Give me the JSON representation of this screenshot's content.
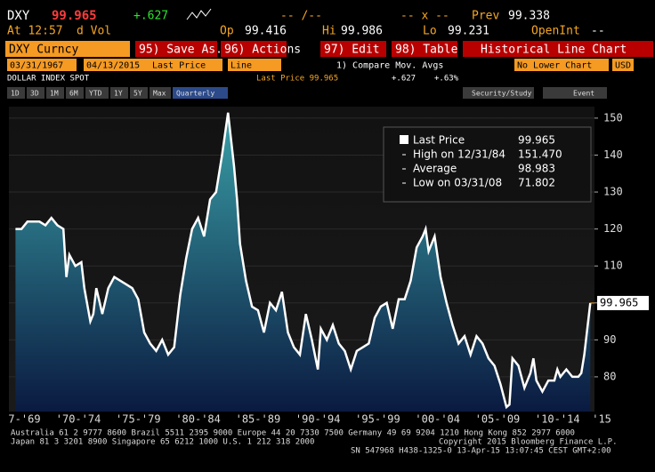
{
  "header": {
    "ticker": "DXY",
    "last": "99.965",
    "change": "+.627",
    "at": "At 12:57",
    "vol": "d Vol",
    "range": "-- /--",
    "op_label": "Op",
    "op": "99.416",
    "hi_label": "Hi",
    "hi": "99.986",
    "lo_label": "Lo",
    "lo": "99.231",
    "x": "-- x --",
    "prev_label": "Prev",
    "prev": "99.338",
    "openint_label": "OpenInt",
    "openint": "--"
  },
  "toolbar": {
    "security": "DXY Curncy",
    "buttons": [
      "95) Save As...",
      "96) Actions",
      "97) Edit",
      "98) Table"
    ],
    "view": "Historical Line Chart"
  },
  "controls": {
    "start": "03/31/1967",
    "end": "04/13/2015",
    "field": "Last Price",
    "style": "Line",
    "compare": "1) Compare Mov. Avgs",
    "lower": "No Lower Chart",
    "currency": "USD"
  },
  "info": {
    "name": "DOLLAR INDEX SPOT",
    "field": "Last Price 99.965",
    "change": "+.627",
    "pct": "+.63%"
  },
  "periods": [
    "1D",
    "3D",
    "1M",
    "6M",
    "YTD",
    "1Y",
    "5Y",
    "Max",
    "Quarterly"
  ],
  "tools": [
    "Security/Study",
    "Event"
  ],
  "chart_data": {
    "type": "line",
    "x": [
      1967.25,
      1967.75,
      1968.25,
      1968.75,
      1969.25,
      1969.75,
      1970.25,
      1970.75,
      1971.25,
      1971.5,
      1971.75,
      1972.25,
      1972.75,
      1973.0,
      1973.5,
      1973.75,
      1974.0,
      1974.5,
      1975.0,
      1975.5,
      1976.0,
      1976.5,
      1977.0,
      1977.5,
      1978.0,
      1978.5,
      1979.0,
      1979.5,
      1980.0,
      1980.5,
      1981.0,
      1981.5,
      1982.0,
      1982.5,
      1983.0,
      1983.5,
      1984.0,
      1984.5,
      1985.0,
      1985.5,
      1985.75,
      1986.0,
      1986.5,
      1987.0,
      1987.5,
      1988.0,
      1988.5,
      1989.0,
      1989.5,
      1990.0,
      1990.5,
      1991.0,
      1991.5,
      1992.0,
      1992.5,
      1992.75,
      1993.25,
      1993.75,
      1994.25,
      1994.75,
      1995.25,
      1995.75,
      1996.25,
      1996.75,
      1997.25,
      1997.75,
      1998.25,
      1998.75,
      1999.25,
      1999.75,
      2000.25,
      2000.75,
      2001.25,
      2001.5,
      2001.75,
      2002.25,
      2002.75,
      2003.25,
      2003.75,
      2004.25,
      2004.75,
      2005.25,
      2005.75,
      2006.25,
      2006.75,
      2007.25,
      2007.75,
      2008.25,
      2008.5,
      2008.75,
      2009.25,
      2009.75,
      2010.25,
      2010.5,
      2010.75,
      2011.25,
      2011.75,
      2012.25,
      2012.5,
      2012.75,
      2013.25,
      2013.75,
      2014.25,
      2014.5,
      2014.75,
      2015.0,
      2015.25
    ],
    "series": [
      {
        "name": "Last Price",
        "color": "#ffffff",
        "values": [
          120,
          120,
          122,
          122,
          122,
          121,
          123,
          121,
          120,
          107,
          113,
          110,
          111,
          104,
          95,
          97,
          104,
          97,
          104,
          107,
          106,
          105,
          104,
          101,
          92,
          89,
          87,
          90,
          86,
          88,
          102,
          112,
          120,
          123,
          118,
          128,
          130,
          140,
          151.47,
          137,
          128,
          116,
          106,
          99,
          98,
          92,
          100,
          98,
          103,
          92,
          88,
          86,
          97,
          90,
          82,
          93,
          90,
          94,
          89,
          87,
          82,
          87,
          88,
          89,
          96,
          99,
          100,
          93,
          101,
          101,
          106,
          115,
          118,
          120,
          114,
          118,
          107,
          100,
          94,
          89,
          91,
          86,
          91,
          89,
          85,
          83,
          78,
          71.802,
          72.5,
          85,
          83,
          77,
          81,
          85,
          79,
          76,
          79,
          79,
          82,
          80,
          82,
          80,
          80,
          81,
          86,
          93,
          99.965
        ]
      }
    ],
    "last_label": "99.965",
    "stats": [
      {
        "label": "High on 12/31/84",
        "value": "151.470"
      },
      {
        "label": "Average",
        "value": "98.983"
      },
      {
        "label": "Low on 03/31/08",
        "value": "71.802"
      }
    ],
    "xlim": [
      1966.7,
      2015.6
    ],
    "ylim": [
      70.6,
      153.1
    ],
    "yticks": [
      80,
      90,
      100,
      110,
      120,
      130,
      140,
      150
    ],
    "xticks": [
      {
        "value": 1968,
        "label": "7-'69"
      },
      {
        "value": 1972.5,
        "label": "'70-'74"
      },
      {
        "value": 1977.5,
        "label": "'75-'79"
      },
      {
        "value": 1982.5,
        "label": "'80-'84"
      },
      {
        "value": 1987.5,
        "label": "'85-'89"
      },
      {
        "value": 1992.5,
        "label": "'90-'94"
      },
      {
        "value": 1997.5,
        "label": "'95-'99"
      },
      {
        "value": 2002.5,
        "label": "'00-'04"
      },
      {
        "value": 2007.5,
        "label": "'05-'09"
      },
      {
        "value": 2012.5,
        "label": "'10-'14"
      },
      {
        "value": 2016.2,
        "label": "'15"
      }
    ],
    "grid": true
  },
  "footer": [
    "Australia 61 2 9777 8600 Brazil 5511 2395 9000 Europe 44 20 7330 7500 Germany 49 69 9204 1210 Hong Kong 852 2977 6000",
    "Japan 81 3 3201 8900     Singapore 65 6212 1000     U.S. 1 212 318 2000",
    "Copyright 2015 Bloomberg Finance L.P.",
    "SN 547968 H438-1325-0 13-Apr-15 13:07:45 CEST GMT+2:00"
  ]
}
